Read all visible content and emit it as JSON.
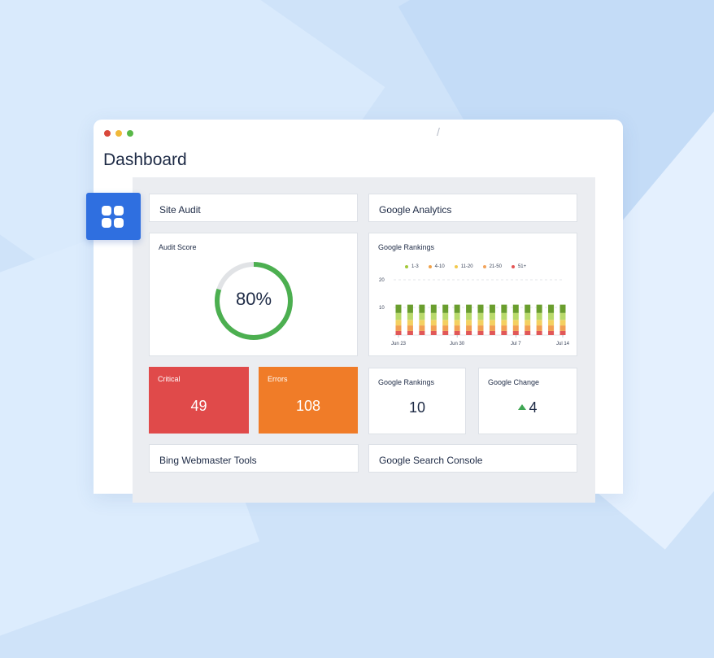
{
  "window": {
    "dot_colors": [
      "#d9483b",
      "#f0b93a",
      "#59b848"
    ],
    "title": "Dashboard"
  },
  "colors": {
    "accent": "#2f6fe0",
    "critical": "#e04a4a",
    "errors": "#f07c28",
    "score_ring": "#4caf50",
    "score_track": "#e1e3e6"
  },
  "sidebar": {
    "icon": "grid-icon"
  },
  "sections": {
    "site_audit": "Site Audit",
    "google_analytics": "Google Analytics",
    "bing": "Bing Webmaster Tools",
    "search_console": "Google Search Console"
  },
  "audit_score": {
    "label": "Audit Score",
    "value": "80%",
    "percent": 80
  },
  "stats": {
    "critical_label": "Critical",
    "critical_value": "49",
    "errors_label": "Errors",
    "errors_value": "108",
    "rankings_label": "Google Rankings",
    "rankings_value": "10",
    "change_label": "Google Change",
    "change_value": "4",
    "change_icon": "up-triangle-icon"
  },
  "chart_data": {
    "type": "bar",
    "title": "Google Rankings",
    "stacked": true,
    "legend": [
      "1-3",
      "4-10",
      "11-20",
      "21-50",
      "51+"
    ],
    "legend_colors": [
      "#a3c83a",
      "#f0a24a",
      "#f2c94c",
      "#f2a35a",
      "#e45454"
    ],
    "segment_colors": [
      "#e15858",
      "#f2a052",
      "#f4d060",
      "#b8d96a",
      "#6a9e2e"
    ],
    "y_ticks": [
      "20",
      "10"
    ],
    "ylim": [
      0,
      20
    ],
    "x_ticks": [
      "Jun 23",
      "Jun 30",
      "Jul 7",
      "Jul 14"
    ],
    "bar_count": 15,
    "series": [
      {
        "name": "51+",
        "values": [
          1.5,
          1.5,
          1.5,
          1.5,
          1.5,
          1.5,
          1.5,
          1.5,
          1.5,
          1.5,
          1.5,
          1.5,
          1.5,
          1.5,
          1.5
        ]
      },
      {
        "name": "21-50",
        "values": [
          2,
          2,
          2,
          2,
          2,
          2,
          2,
          2,
          2,
          2,
          2,
          2,
          2,
          2,
          2
        ]
      },
      {
        "name": "11-20",
        "values": [
          2,
          2,
          2,
          2,
          2,
          2,
          2,
          2,
          2,
          2,
          2,
          2,
          2,
          2,
          2
        ]
      },
      {
        "name": "4-10",
        "values": [
          2.5,
          2.5,
          2.5,
          2.5,
          2.5,
          2.5,
          2.5,
          2.5,
          2.5,
          2.5,
          2.5,
          2.5,
          2.5,
          2.5,
          2.5
        ]
      },
      {
        "name": "1-3",
        "values": [
          3,
          3,
          3,
          3,
          3,
          3,
          3,
          3,
          3,
          3,
          3,
          3,
          3,
          3,
          3
        ]
      }
    ]
  }
}
